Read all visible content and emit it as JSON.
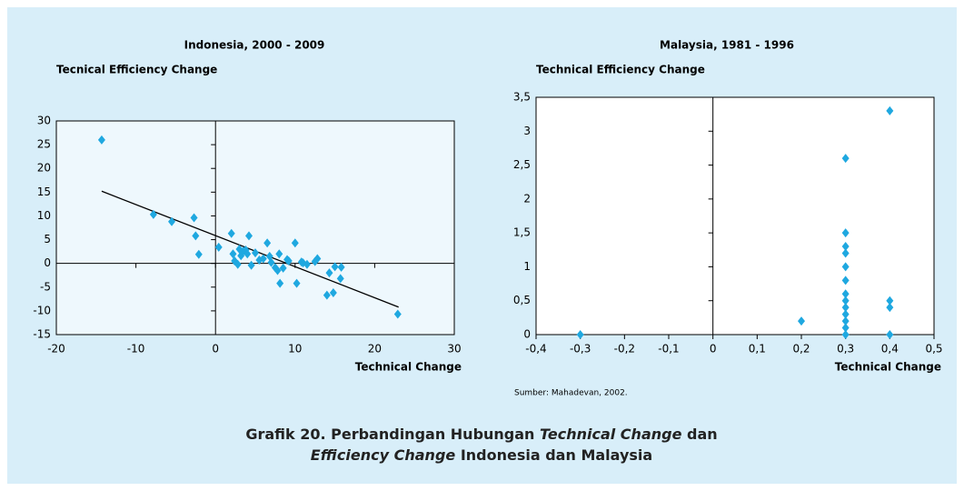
{
  "chart_data": [
    {
      "type": "scatter",
      "title": "Indonesia, 2000 - 2009",
      "ylabel": "Tecnical Efficiency  Change",
      "xlabel": "Technical Change",
      "color": "#1fa8e0",
      "x": [
        -14.3,
        -7.8,
        -5.5,
        -2.7,
        -2.5,
        -2.1,
        0.4,
        2,
        2.2,
        2.4,
        2.8,
        3,
        3.2,
        3.5,
        3.8,
        4,
        4.2,
        4.5,
        5,
        5.5,
        6,
        6.5,
        6.8,
        7,
        7.5,
        7.8,
        8,
        8.1,
        8.5,
        9,
        9.2,
        10,
        10.2,
        10.8,
        11,
        11.5,
        12.5,
        12.8,
        14,
        14.3,
        14.8,
        15,
        15.7,
        15.8,
        22.9
      ],
      "values": [
        26,
        10.3,
        8.8,
        9.6,
        5.8,
        1.9,
        3.4,
        6.3,
        2,
        0.5,
        -0.2,
        3,
        1.6,
        2.6,
        2.8,
        2,
        5.8,
        -0.4,
        2.2,
        0.7,
        1,
        4.3,
        1.5,
        0.2,
        -0.9,
        -1.5,
        2,
        -4.2,
        -1,
        0.8,
        0.5,
        4.3,
        -4.2,
        0.3,
        0.1,
        -0.2,
        0.4,
        1,
        -6.7,
        -2,
        -6.2,
        -0.7,
        -3.2,
        -0.8,
        -10.7
      ],
      "trendline": {
        "x": [
          -14.3,
          23
        ],
        "y": [
          15.2,
          -9.2
        ]
      },
      "xlim": [
        -20,
        30
      ],
      "xticks": [
        -20,
        -10,
        0,
        10,
        20,
        30
      ],
      "ylim": [
        -15,
        30
      ],
      "yticks": [
        -15,
        -10,
        -5,
        0,
        5,
        10,
        15,
        20,
        25,
        30
      ]
    },
    {
      "type": "scatter",
      "title": "Malaysia, 1981 - 1996",
      "ylabel": "Technical Efficiency Change",
      "xlabel": "Technical Change",
      "color": "#1fa8e0",
      "x": [
        -0.3,
        0.2,
        0.3,
        0.3,
        0.3,
        0.3,
        0.3,
        0.3,
        0.3,
        0.3,
        0.3,
        0.3,
        0.3,
        0.3,
        0.3,
        0.4,
        0.4,
        0.4,
        0.4
      ],
      "values": [
        0,
        0.2,
        0,
        0.1,
        0.2,
        0.3,
        0.4,
        0.5,
        0.6,
        0.8,
        1,
        1.2,
        1.3,
        1.5,
        2.6,
        0,
        0.4,
        0.5,
        3.3
      ],
      "xlim": [
        -0.4,
        0.5
      ],
      "xticks": [
        {
          "value": -0.4,
          "label": "-0,4"
        },
        {
          "value": -0.3,
          "label": "-0,3"
        },
        {
          "value": -0.2,
          "label": "-0,2"
        },
        {
          "value": -0.1,
          "label": "-0,1"
        },
        0,
        {
          "value": 0.1,
          "label": "0,1"
        },
        {
          "value": 0.2,
          "label": "0,2"
        },
        {
          "value": 0.3,
          "label": "0,3"
        },
        {
          "value": 0.4,
          "label": "0,4"
        },
        {
          "value": 0.5,
          "label": "0,5"
        }
      ],
      "ylim": [
        0,
        3.5
      ],
      "yticks": [
        0,
        {
          "value": 0.5,
          "label": "0,5"
        },
        1,
        {
          "value": 1.5,
          "label": "1,5"
        },
        2,
        {
          "value": 2.5,
          "label": "2,5"
        },
        3,
        {
          "value": 3.5,
          "label": "3,5"
        }
      ]
    }
  ],
  "source": "Sumber: Mahadevan, 2002.",
  "caption": {
    "line1": [
      "Grafik 20. Perbandingan Hubungan ",
      "Technical Change",
      " dan"
    ],
    "line2": [
      "Efficiency Change",
      " Indonesia dan Malaysia"
    ]
  }
}
